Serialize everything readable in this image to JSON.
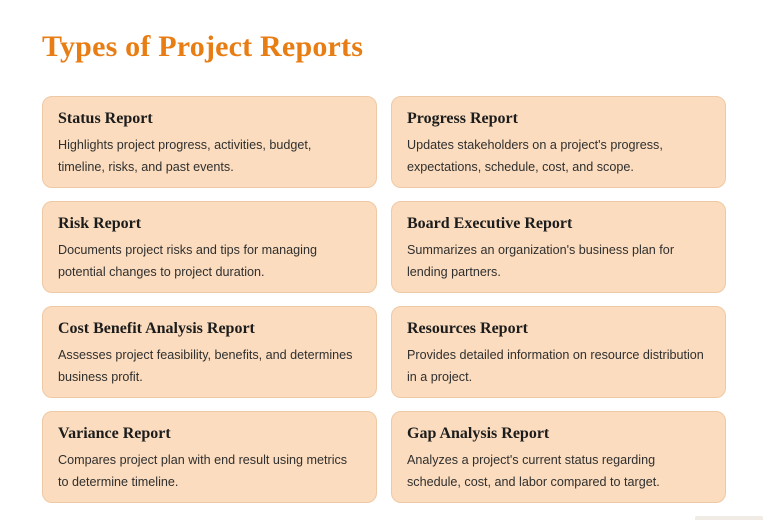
{
  "page": {
    "title": "Types of Project Reports"
  },
  "colors": {
    "accent_orange": "#E87D14",
    "card_background": "#FBDCBE",
    "card_border": "#EEC9A5",
    "card_title_text": "#1C1C1C",
    "card_body_text": "#2F2F2F",
    "page_background": "#FFFFFF"
  },
  "cards": [
    {
      "title": "Status Report",
      "description": "Highlights project progress, activities, budget, timeline, risks, and past events."
    },
    {
      "title": "Progress Report",
      "description": "Updates stakeholders on a project's progress, expectations, schedule, cost, and scope."
    },
    {
      "title": "Risk Report",
      "description": "Documents project risks and tips for managing potential changes to project duration."
    },
    {
      "title": "Board Executive Report",
      "description": "Summarizes an organization's business plan for lending partners."
    },
    {
      "title": "Cost Benefit Analysis Report",
      "description": "Assesses project feasibility, benefits, and determines business profit."
    },
    {
      "title": "Resources Report",
      "description": "Provides detailed information on resource distribution in a project."
    },
    {
      "title": "Variance Report",
      "description": "Compares project plan with end result using metrics to determine timeline."
    },
    {
      "title": "Gap Analysis Report",
      "description": "Analyzes a project's current status regarding schedule, cost, and labor compared to target."
    }
  ]
}
